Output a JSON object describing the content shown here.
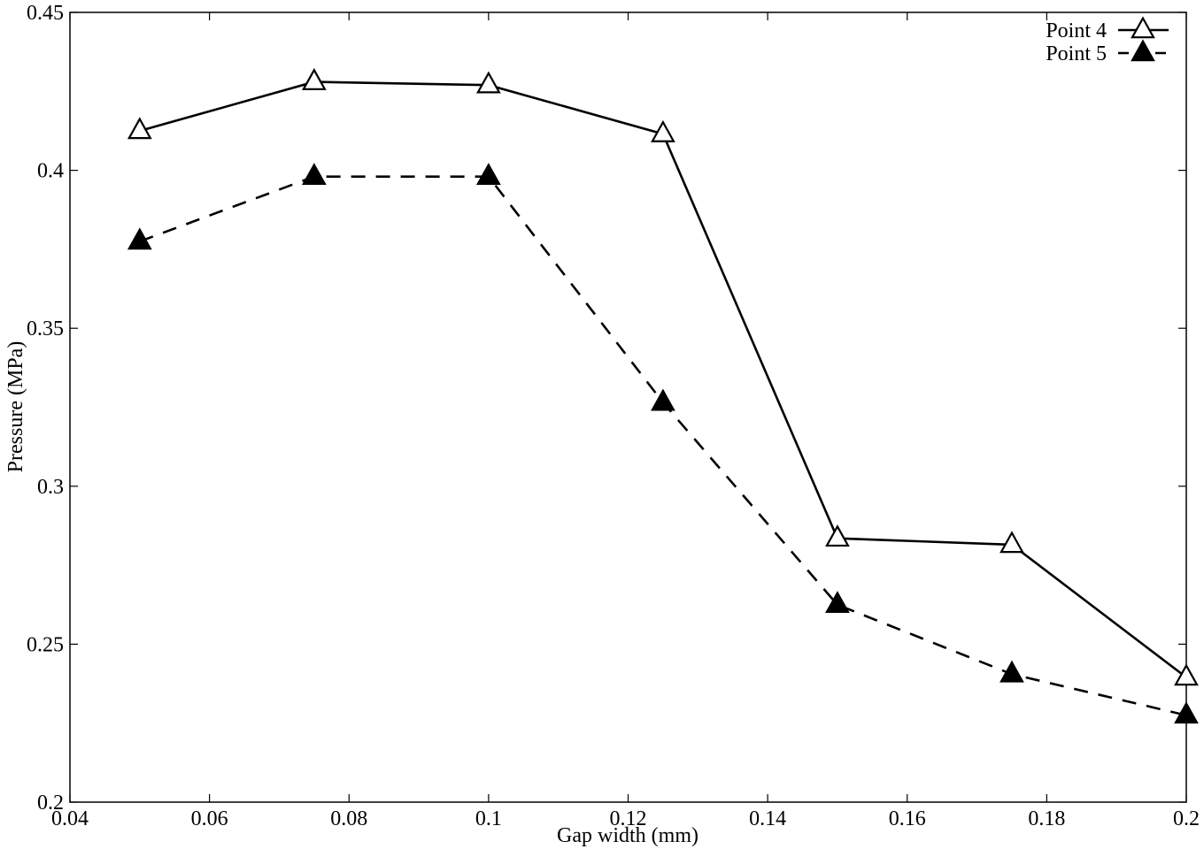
{
  "chart_data": {
    "type": "line",
    "xlabel": "Gap width (mm)",
    "ylabel": "Pressure (MPa)",
    "xlim": [
      0.04,
      0.2
    ],
    "ylim": [
      0.2,
      0.45
    ],
    "xticks": [
      0.04,
      0.06,
      0.08,
      0.1,
      0.12,
      0.14,
      0.16,
      0.18,
      0.2
    ],
    "xtick_labels": [
      "0.04",
      "0.06",
      "0.08",
      "0.1",
      "0.12",
      "0.14",
      "0.16",
      "0.18",
      "0.2"
    ],
    "yticks": [
      0.2,
      0.25,
      0.3,
      0.35,
      0.4,
      0.45
    ],
    "ytick_labels": [
      "0.2",
      "0.25",
      "0.3",
      "0.35",
      "0.4",
      "0.45"
    ],
    "grid": false,
    "legend_position": "top-right",
    "x": [
      0.05,
      0.075,
      0.1,
      0.125,
      0.15,
      0.175,
      0.2
    ],
    "series": [
      {
        "name": "Point 4",
        "values": [
          0.4125,
          0.428,
          0.427,
          0.4115,
          0.2835,
          0.2815,
          0.2395
        ],
        "line_style": "solid",
        "marker": "open-triangle",
        "color": "#000000"
      },
      {
        "name": "Point 5",
        "values": [
          0.3775,
          0.398,
          0.398,
          0.3265,
          0.2625,
          0.2405,
          0.2275
        ],
        "line_style": "dashed",
        "marker": "filled-triangle",
        "color": "#000000"
      }
    ]
  }
}
